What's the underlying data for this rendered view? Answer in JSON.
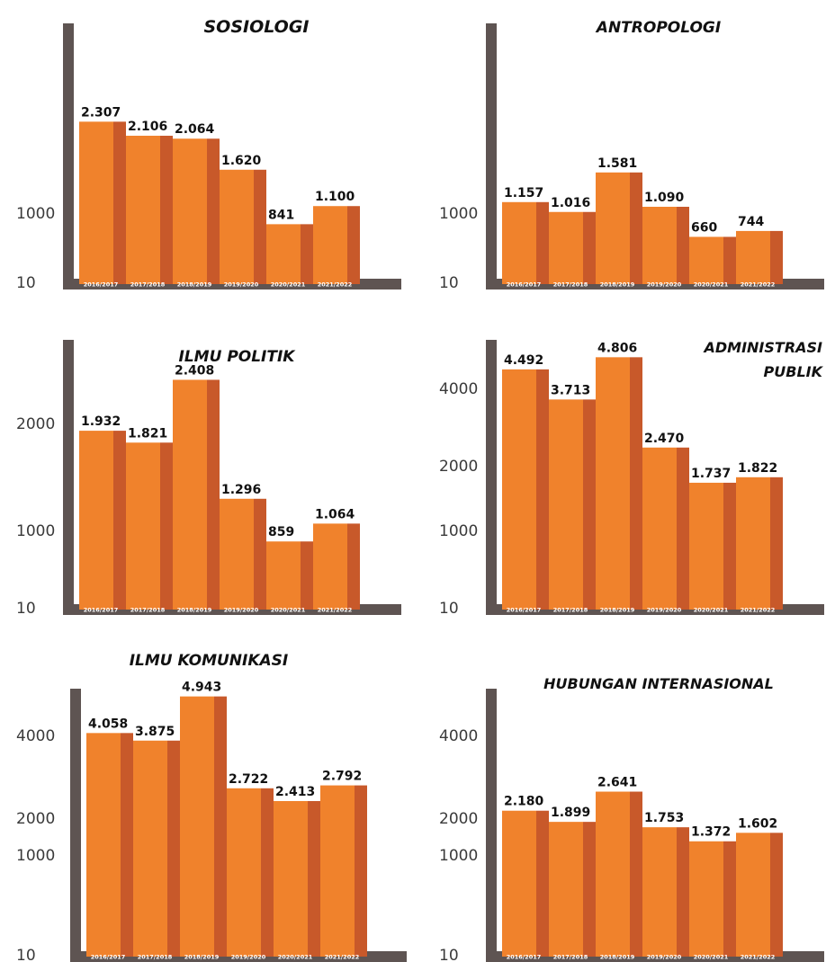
{
  "colors": {
    "bar_front": "#F0822C",
    "bar_side": "#C8592A",
    "axis": "#5E5452",
    "text": "#111111",
    "background": "#FFFFFF"
  },
  "chart_data": [
    {
      "type": "bar",
      "title": [
        "SOSIOLOGI"
      ],
      "categories": [
        "2016/2017",
        "2017/2018",
        "2018/2019",
        "2019/2020",
        "2020/2021",
        "2021/2022"
      ],
      "values": [
        2307,
        2106,
        2064,
        1620,
        841,
        1100
      ],
      "value_labels": [
        "2.307",
        "2.106",
        "2.064",
        "1.620",
        "841",
        "1.100"
      ],
      "y_ticks": [
        "1000",
        "10"
      ],
      "grid": false,
      "legend": "none"
    },
    {
      "type": "bar",
      "title": [
        "ANTROPOLOGI"
      ],
      "categories": [
        "2016/2017",
        "2017/2018",
        "2018/2019",
        "2019/2020",
        "2020/2021",
        "2021/2022"
      ],
      "values": [
        1157,
        1016,
        1581,
        1090,
        660,
        744
      ],
      "value_labels": [
        "1.157",
        "1.016",
        "1.581",
        "1.090",
        "660",
        "744"
      ],
      "y_ticks": [
        "1000",
        "10"
      ],
      "grid": false,
      "legend": "none"
    },
    {
      "type": "bar",
      "title": [
        "ILMU POLITIK"
      ],
      "categories": [
        "2016/2017",
        "2017/2018",
        "2018/2019",
        "2019/2020",
        "2020/2021",
        "2021/2022"
      ],
      "values": [
        1932,
        1821,
        2408,
        1296,
        859,
        1064
      ],
      "value_labels": [
        "1.932",
        "1.821",
        "2.408",
        "1.296",
        "859",
        "1.064"
      ],
      "y_ticks": [
        "2000",
        "1000",
        "10"
      ],
      "grid": false,
      "legend": "none"
    },
    {
      "type": "bar",
      "title": [
        "ADMINISTRASI",
        "PUBLIK"
      ],
      "categories": [
        "2016/2017",
        "2017/2018",
        "2018/2019",
        "2019/2020",
        "2020/2021",
        "2021/2022"
      ],
      "values": [
        4492,
        3713,
        4806,
        2470,
        1737,
        1822
      ],
      "value_labels": [
        "4.492",
        "3.713",
        "4.806",
        "2.470",
        "1.737",
        "1.822"
      ],
      "y_ticks": [
        "4000",
        "2000",
        "1000",
        "10"
      ],
      "grid": false,
      "legend": "none"
    },
    {
      "type": "bar",
      "title": [
        "ILMU KOMUNIKASI"
      ],
      "categories": [
        "2016/2017",
        "2017/2018",
        "2018/2019",
        "2019/2020",
        "2020/2021",
        "2021/2022"
      ],
      "values": [
        4058,
        3875,
        4943,
        2722,
        2413,
        2792
      ],
      "value_labels": [
        "4.058",
        "3.875",
        "4.943",
        "2.722",
        "2.413",
        "2.792"
      ],
      "y_ticks": [
        "4000",
        "2000",
        "1000",
        "10"
      ],
      "grid": false,
      "legend": "none"
    },
    {
      "type": "bar",
      "title": [
        "HUBUNGAN INTERNASIONAL"
      ],
      "categories": [
        "2016/2017",
        "2017/2018",
        "2018/2019",
        "2019/2020",
        "2020/2021",
        "2021/2022"
      ],
      "values": [
        2180,
        1899,
        2641,
        1753,
        1372,
        1602
      ],
      "value_labels": [
        "2.180",
        "1.899",
        "2.641",
        "1.753",
        "1.372",
        "1.602"
      ],
      "y_ticks": [
        "4000",
        "2000",
        "1000",
        "10"
      ],
      "grid": false,
      "legend": "none"
    }
  ]
}
